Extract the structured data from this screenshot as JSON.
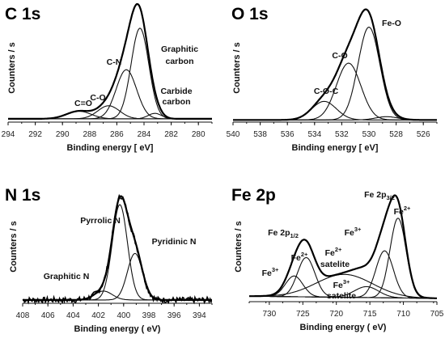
{
  "chart_data": [
    {
      "type": "line",
      "title": "C 1s",
      "xlabel": "Binding energy [ eV]",
      "ylabel": "Counters / s",
      "xlim": [
        294,
        279
      ],
      "xticks": [
        294,
        292,
        290,
        288,
        286,
        284,
        282,
        280
      ],
      "annotations": [
        {
          "label": "Graphitic",
          "x": 282.6
        },
        {
          "label": "carbon",
          "x": 282.6
        },
        {
          "label": "C-N",
          "x": 286.0
        },
        {
          "label": "C-O",
          "x": 287.4
        },
        {
          "label": "C=O",
          "x": 289.0
        },
        {
          "label": "Carbide",
          "x": 282.0
        },
        {
          "label": "carbon",
          "x": 282.0
        }
      ],
      "peaks": [
        {
          "center": 284.3,
          "height": 0.83,
          "width": 0.65
        },
        {
          "center": 285.3,
          "height": 0.45,
          "width": 0.75
        },
        {
          "center": 286.6,
          "height": 0.12,
          "width": 0.8
        },
        {
          "center": 288.8,
          "height": 0.07,
          "width": 0.9
        },
        {
          "center": 283.2,
          "height": 0.05,
          "width": 0.5
        }
      ],
      "background": 0.03
    },
    {
      "type": "line",
      "title": "O 1s",
      "xlabel": "Binding energy [ eV]",
      "ylabel": "Counters / s",
      "xlim": [
        540,
        525
      ],
      "xticks": [
        540,
        538,
        536,
        534,
        532,
        530,
        528,
        526
      ],
      "annotations": [
        {
          "label": "Fe-O",
          "x": 529.4
        },
        {
          "label": "C-O",
          "x": 531.8
        },
        {
          "label": "C-O-C",
          "x": 533.8
        }
      ],
      "peaks": [
        {
          "center": 530.0,
          "height": 0.85,
          "width": 0.8
        },
        {
          "center": 531.5,
          "height": 0.52,
          "width": 0.9
        },
        {
          "center": 533.3,
          "height": 0.17,
          "width": 0.9
        },
        {
          "center": 528.7,
          "height": 0.03,
          "width": 0.8
        }
      ],
      "background": 0.02
    },
    {
      "type": "line",
      "title": "N 1s",
      "xlabel": "Binding energy ( eV)",
      "ylabel": "Counters / s",
      "xlim": [
        408,
        393
      ],
      "xticks": [
        408,
        406,
        404,
        402,
        400,
        398,
        396,
        394
      ],
      "annotations": [
        {
          "label": "Pyrrolic N",
          "x": 403.0
        },
        {
          "label": "Pyridinic N",
          "x": 396.3
        },
        {
          "label": "Graphitic N",
          "x": 404.4
        }
      ],
      "peaks": [
        {
          "center": 400.3,
          "height": 0.86,
          "width": 0.6
        },
        {
          "center": 399.1,
          "height": 0.42,
          "width": 0.6
        },
        {
          "center": 401.6,
          "height": 0.08,
          "width": 0.7
        }
      ],
      "background": 0.03,
      "noise": 0.025
    },
    {
      "type": "line",
      "title": "Fe 2p",
      "xlabel": "Binding energy ( eV)",
      "ylabel": "Counters / s",
      "xlim": [
        733,
        705
      ],
      "xticks": [
        730,
        725,
        720,
        715,
        710,
        705
      ],
      "annotations": [
        {
          "label": "Fe 2p",
          "sub": "3/2",
          "x": 711.5
        },
        {
          "label": "Fe",
          "sup": "2+",
          "x": 708.6
        },
        {
          "label": "Fe 2p",
          "sub": "1/2",
          "x": 726.5
        },
        {
          "label": "Fe",
          "sup": "3+",
          "x": 713.3
        },
        {
          "label": "Fe",
          "sup": "2+",
          "x": 725.4
        },
        {
          "label": "Fe",
          "sup": "2+",
          "x": 715.2
        },
        {
          "label": "satelite",
          "x": 714.4
        },
        {
          "label": "Fe",
          "sup": "3+",
          "x": 728.4
        },
        {
          "label": "Fe",
          "sup": "3+",
          "x": 719.0
        },
        {
          "label": "satelite",
          "x": 719.0
        }
      ],
      "peaks": [
        {
          "center": 710.8,
          "height": 0.73,
          "width": 1.2
        },
        {
          "center": 712.8,
          "height": 0.43,
          "width": 1.3
        },
        {
          "center": 724.5,
          "height": 0.36,
          "width": 1.3
        },
        {
          "center": 726.3,
          "height": 0.19,
          "width": 1.3
        },
        {
          "center": 715.5,
          "height": 0.1,
          "width": 1.8
        },
        {
          "center": 718.8,
          "height": 0.21,
          "width": 4.2
        }
      ],
      "background": 0.03
    }
  ]
}
